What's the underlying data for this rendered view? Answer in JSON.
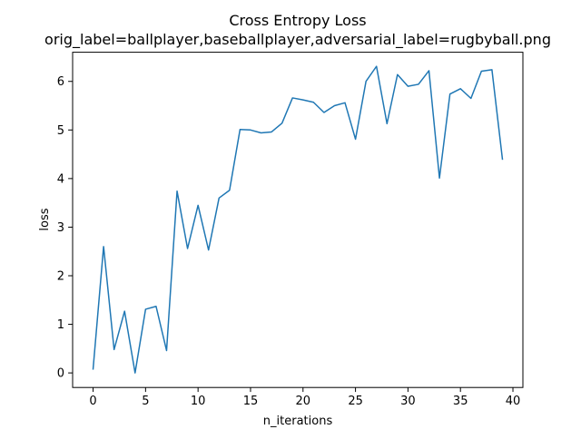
{
  "chart_data": {
    "type": "line",
    "title": "Cross Entropy Loss",
    "subtitle": "orig_label=ballplayer,baseballplayer,adversarial_label=rugbyball.png",
    "xlabel": "n_iterations",
    "ylabel": "loss",
    "xlim": [
      -1.95,
      40.95
    ],
    "ylim": [
      -0.3,
      6.6
    ],
    "xticks": [
      0,
      5,
      10,
      15,
      20,
      25,
      30,
      35,
      40
    ],
    "yticks": [
      0,
      1,
      2,
      3,
      4,
      5,
      6
    ],
    "grid": false,
    "legend": "none",
    "series": [
      {
        "color": "#1f77b4",
        "x": [
          0,
          1,
          2,
          3,
          4,
          5,
          6,
          7,
          8,
          9,
          10,
          11,
          12,
          13,
          14,
          15,
          16,
          17,
          18,
          19,
          20,
          21,
          22,
          23,
          24,
          25,
          26,
          27,
          28,
          29,
          30,
          31,
          32,
          33,
          34,
          35,
          36,
          37,
          38,
          39
        ],
        "values": [
          0.08,
          2.6,
          0.48,
          1.27,
          0.0,
          1.31,
          1.37,
          0.46,
          3.74,
          2.56,
          3.45,
          2.53,
          3.6,
          3.76,
          5.01,
          5.0,
          4.94,
          4.96,
          5.14,
          5.66,
          5.62,
          5.57,
          5.36,
          5.5,
          5.56,
          4.81,
          6.0,
          6.31,
          5.13,
          6.14,
          5.9,
          5.94,
          6.22,
          4.01,
          5.74,
          5.85,
          5.65,
          6.21,
          6.24,
          4.4
        ]
      }
    ]
  }
}
